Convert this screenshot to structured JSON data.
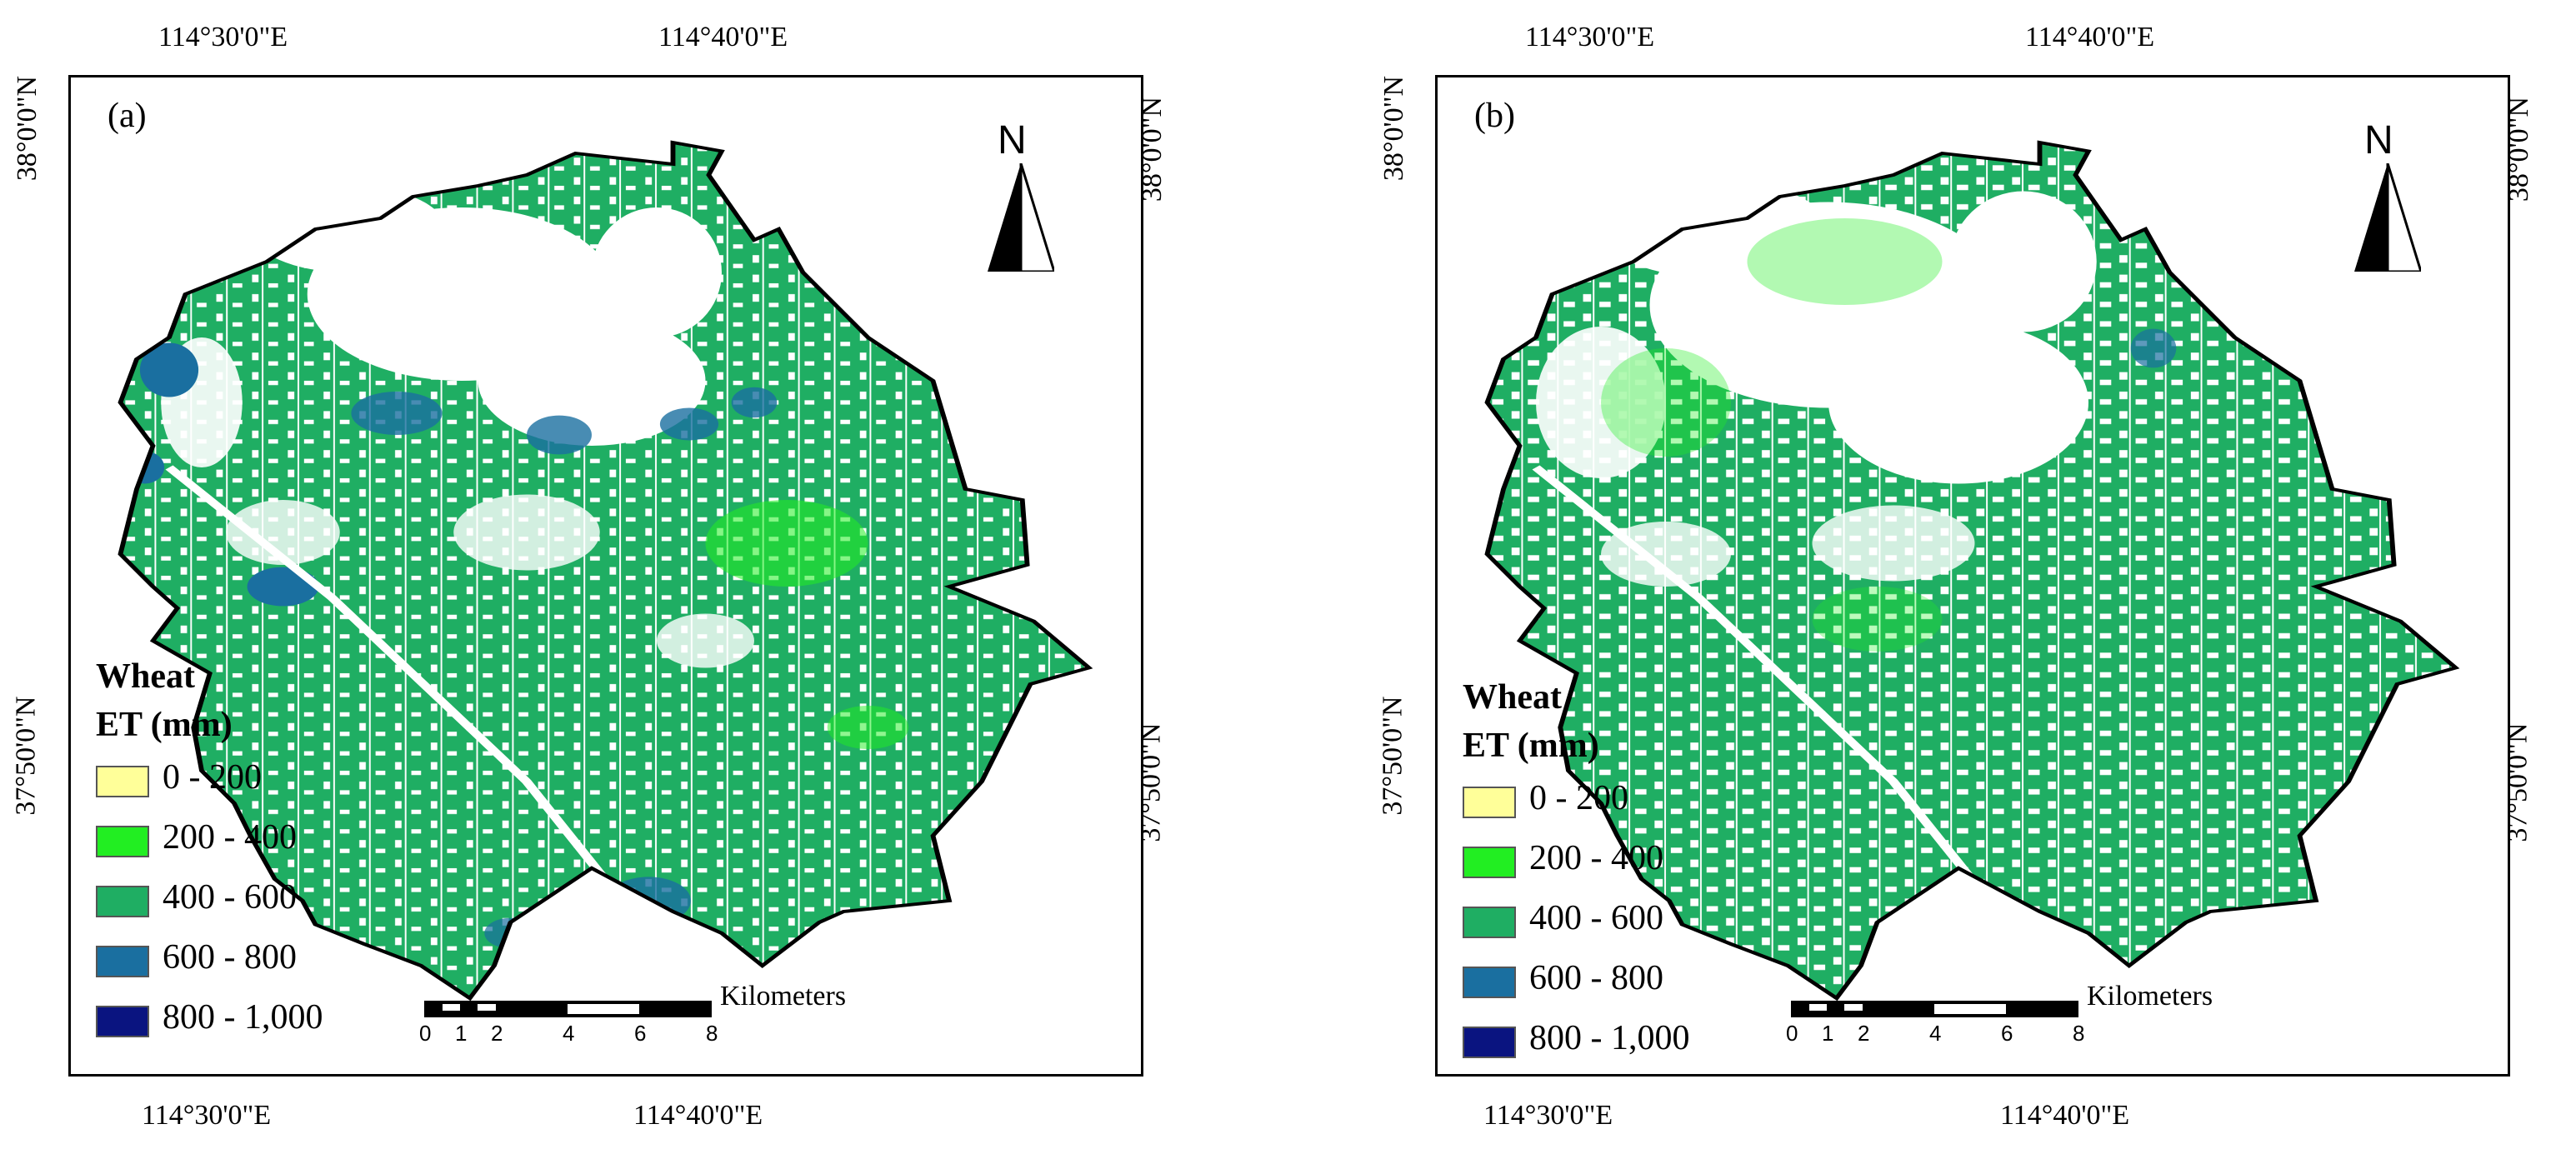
{
  "panels": [
    {
      "label": "(a)",
      "top_coords": [
        "114°30'0\"E",
        "114°40'0\"E"
      ],
      "bottom_coords": [
        "114°30'0\"E",
        "114°40'0\"E"
      ],
      "left_coords": [
        "38°0'0\"N",
        "37°50'0\"N"
      ],
      "right_coords": [
        "38°0'0\"N",
        "37°50'0\"N"
      ]
    },
    {
      "label": "(b)",
      "top_coords": [
        "114°30'0\"E",
        "114°40'0\"E"
      ],
      "bottom_coords": [
        "114°30'0\"E",
        "114°40'0\"E"
      ],
      "left_coords": [
        "38°0'0\"N",
        "37°50'0\"N"
      ],
      "right_coords": [
        "38°0'0\"N",
        "37°50'0\"N"
      ]
    }
  ],
  "legend": {
    "title_line1": "Wheat",
    "title_line2": "ET (mm)",
    "classes": [
      {
        "label": "0 - 200",
        "color": "#ffff99"
      },
      {
        "label": "200 - 400",
        "color": "#22ee22"
      },
      {
        "label": "400 - 600",
        "color": "#1fae63"
      },
      {
        "label": "600 - 800",
        "color": "#1a6fa0"
      },
      {
        "label": "800 - 1,000",
        "color": "#0a1480"
      }
    ]
  },
  "scale": {
    "units": "Kilometers",
    "ticks": [
      "0",
      "1",
      "2",
      "4",
      "6",
      "8"
    ]
  },
  "north_arrow": {
    "letter": "N"
  },
  "boundary_color": "#000000"
}
